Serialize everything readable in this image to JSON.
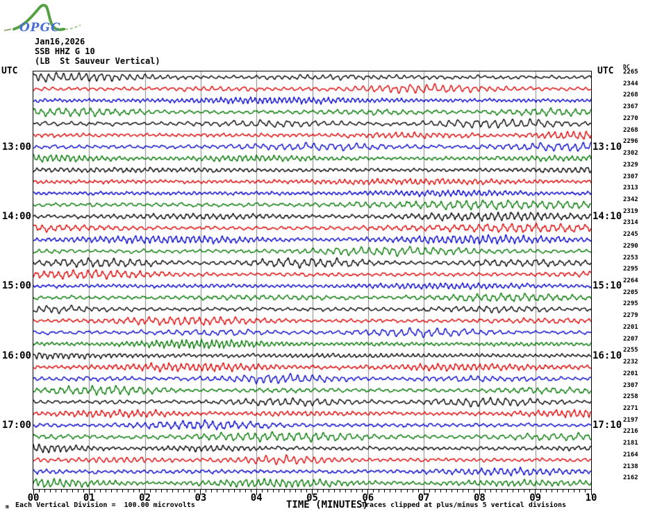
{
  "logo": {
    "text": "OPGC",
    "green": "#55a044",
    "blue": "#4a6fd4"
  },
  "header": {
    "date": "Jan16,2026",
    "station": "SSB HHZ G 10",
    "location": "(LB  St Sauveur Vertical)"
  },
  "axes": {
    "utc_left": "UTC",
    "utc_right": "UTC",
    "dc_header": "DC"
  },
  "x_axis": {
    "title": "TIME (MINUTES)",
    "labels": [
      "00",
      "01",
      "02",
      "03",
      "04",
      "05",
      "06",
      "07",
      "08",
      "09",
      "10"
    ]
  },
  "hour_labels": {
    "left": [
      {
        "row": 7,
        "text": "13:00"
      },
      {
        "row": 13,
        "text": "14:00"
      },
      {
        "row": 19,
        "text": "15:00"
      },
      {
        "row": 25,
        "text": "16:00"
      },
      {
        "row": 31,
        "text": "17:00"
      }
    ],
    "right": [
      {
        "row": 7,
        "text": "13:10"
      },
      {
        "row": 13,
        "text": "14:10"
      },
      {
        "row": 19,
        "text": "15:10"
      },
      {
        "row": 25,
        "text": "16:10"
      },
      {
        "row": 31,
        "text": "17:10"
      }
    ]
  },
  "footer": {
    "mark": "m",
    "division_note": "Each Vertical Division =  100.00 microvolts",
    "clip_note": "Traces clipped at plus/minus 5 vertical divisions"
  },
  "chart_data": {
    "type": "line",
    "subtype": "webicorder-seismogram-helicorder",
    "title": "SSB HHZ G 10 (LB St Sauveur Vertical) Jan16,2026",
    "xlabel": "TIME (MINUTES)",
    "xlim": [
      0,
      10
    ],
    "x_tick_labels": [
      "00",
      "01",
      "02",
      "03",
      "04",
      "05",
      "06",
      "07",
      "08",
      "09",
      "10"
    ],
    "minutes_per_row": 10,
    "rows": 36,
    "grid": "vertical-gray-lines-every-minute",
    "gridline_color": "#808080",
    "trace_color_cycle": [
      "#000000",
      "#dd0000",
      "#0000cc",
      "#007700"
    ],
    "hour_marks_left": [
      "13:00",
      "14:00",
      "15:00",
      "16:00",
      "17:00"
    ],
    "hour_marks_right": [
      "13:10",
      "14:10",
      "15:10",
      "16:10",
      "17:10"
    ],
    "dc_values": [
      2265,
      2344,
      2268,
      2367,
      2270,
      2268,
      2296,
      2302,
      2329,
      2307,
      2313,
      2342,
      2319,
      2314,
      2245,
      2290,
      2253,
      2295,
      2264,
      2205,
      2295,
      2279,
      2201,
      2207,
      2255,
      2232,
      2201,
      2307,
      2258,
      2271,
      2197,
      2216,
      2181,
      2164,
      2138,
      2162
    ],
    "clip_note": "Traces clipped at plus/minus 5 vertical divisions",
    "vertical_division_microvolts": "100.00"
  }
}
